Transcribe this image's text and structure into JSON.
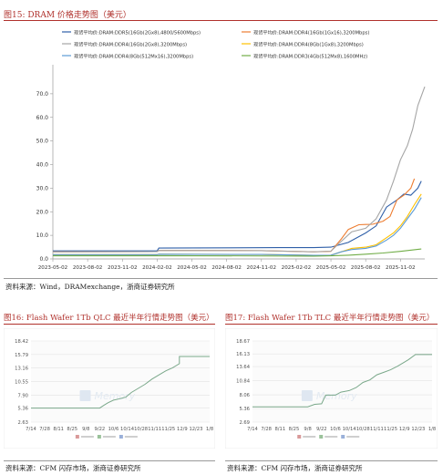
{
  "figures": [
    {
      "title": "图15:  DRAM 价格走势图（美元）",
      "source": "资料来源：Wind，DRAMexchange，浙商证券研究所"
    },
    {
      "title": "图16:  Flash Wafer 1Tb QLC 最近半年行情走势图（美元）",
      "source": "资料来源：CFM 闪存市场，浙商证券研究所"
    },
    {
      "title": "图17:  Flash Wafer 1Tb TLC 最近半年行情走势图（美元）",
      "source": "资料来源：CFM 闪存市场，浙商证券研究所"
    }
  ],
  "colors": {
    "accent": "#b0312c"
  },
  "chart_data": [
    {
      "type": "line",
      "x": [
        "2023-05-02",
        "2023-08-02",
        "2023-11-02",
        "2024-02-02",
        "2024-05-02",
        "2024-08-02",
        "2024-11-02",
        "2025-02-02",
        "2025-05-02",
        "2025-08-02",
        "2025-11-02"
      ],
      "xlim": [
        0,
        10.7
      ],
      "ylim": [
        0,
        80
      ],
      "yticks": [
        "0.0",
        "10.0",
        "20.0",
        "30.0",
        "40.0",
        "50.0",
        "60.0",
        "70.0"
      ],
      "legend_position": "top",
      "series": [
        {
          "name": "现货平均价:DRAM:DDR5(16Gb(2Gx8),4800/5600Mbps)",
          "color": "#2f5fa8",
          "points": [
            [
              0,
              3.4
            ],
            [
              3.0,
              3.4
            ],
            [
              3.05,
              4.6
            ],
            [
              6.5,
              4.8
            ],
            [
              7.5,
              4.8
            ],
            [
              8.0,
              5.0
            ],
            [
              8.5,
              7.0
            ],
            [
              9.0,
              11.0
            ],
            [
              9.3,
              14.0
            ],
            [
              9.6,
              22.0
            ],
            [
              9.9,
              25.0
            ],
            [
              10.1,
              27.5
            ],
            [
              10.3,
              27.0
            ],
            [
              10.5,
              30.0
            ],
            [
              10.6,
              33.0
            ]
          ]
        },
        {
          "name": "现货平均价:DRAM:DDR4(16Gb(1Gx16),3200Mbps)",
          "color": "#ed7d31",
          "points": [
            [
              0,
              3.0
            ],
            [
              3.0,
              3.1
            ],
            [
              3.05,
              3.6
            ],
            [
              6.0,
              3.5
            ],
            [
              7.5,
              3.0
            ],
            [
              8.0,
              3.2
            ],
            [
              8.3,
              8.5
            ],
            [
              8.5,
              12.5
            ],
            [
              8.8,
              14.5
            ],
            [
              9.0,
              14.6
            ],
            [
              9.2,
              14.7
            ],
            [
              9.5,
              16.0
            ],
            [
              9.7,
              18.0
            ],
            [
              9.9,
              25.0
            ],
            [
              10.1,
              27.0
            ],
            [
              10.3,
              30.0
            ],
            [
              10.4,
              34.0
            ]
          ]
        },
        {
          "name": "现货平均价:DRAM:DDR4(16Gb(2Gx8),3200Mbps)",
          "color": "#a5a5a5",
          "points": [
            [
              0,
              3.0
            ],
            [
              3.0,
              3.1
            ],
            [
              3.05,
              3.6
            ],
            [
              6.0,
              3.5
            ],
            [
              7.5,
              3.0
            ],
            [
              8.0,
              3.3
            ],
            [
              8.3,
              7.5
            ],
            [
              8.6,
              11.5
            ],
            [
              9.0,
              13.0
            ],
            [
              9.3,
              17.0
            ],
            [
              9.6,
              25.0
            ],
            [
              9.8,
              33.0
            ],
            [
              10.0,
              42.0
            ],
            [
              10.2,
              48.0
            ],
            [
              10.35,
              55.0
            ],
            [
              10.5,
              65.0
            ],
            [
              10.7,
              73.0
            ]
          ]
        },
        {
          "name": "现货平均价:DRAM:DDR4(8Gb(1Gx8),3200Mbps)",
          "color": "#ffc000",
          "points": [
            [
              0,
              1.8
            ],
            [
              3.0,
              1.8
            ],
            [
              3.05,
              2.0
            ],
            [
              6.0,
              1.9
            ],
            [
              7.5,
              1.5
            ],
            [
              8.0,
              1.6
            ],
            [
              8.3,
              3.0
            ],
            [
              8.6,
              4.5
            ],
            [
              9.0,
              5.0
            ],
            [
              9.3,
              6.0
            ],
            [
              9.6,
              9.0
            ],
            [
              9.8,
              11.0
            ],
            [
              10.0,
              14.0
            ],
            [
              10.2,
              18.0
            ],
            [
              10.4,
              23.0
            ],
            [
              10.6,
              27.5
            ]
          ]
        },
        {
          "name": "现货平均价:DRAM:DDR4(8Gb(512Mx16),3200Mbps)",
          "color": "#5b9bd5",
          "points": [
            [
              0,
              1.8
            ],
            [
              3.0,
              1.8
            ],
            [
              3.05,
              2.0
            ],
            [
              6.0,
              1.9
            ],
            [
              7.5,
              1.5
            ],
            [
              8.0,
              1.6
            ],
            [
              8.3,
              3.0
            ],
            [
              8.6,
              4.0
            ],
            [
              9.0,
              4.5
            ],
            [
              9.3,
              5.5
            ],
            [
              9.6,
              8.0
            ],
            [
              9.8,
              10.0
            ],
            [
              10.0,
              13.0
            ],
            [
              10.2,
              17.0
            ],
            [
              10.4,
              21.0
            ],
            [
              10.6,
              26.0
            ]
          ]
        },
        {
          "name": "现货平均价:DRAM:DDR3(4Gb(512Mx8),1600MHz)",
          "color": "#70ad47",
          "points": [
            [
              0,
              1.3
            ],
            [
              3.0,
              1.3
            ],
            [
              3.05,
              1.4
            ],
            [
              7.5,
              1.2
            ],
            [
              8.0,
              1.3
            ],
            [
              8.5,
              1.6
            ],
            [
              9.0,
              2.0
            ],
            [
              9.5,
              2.5
            ],
            [
              10.0,
              3.2
            ],
            [
              10.6,
              4.2
            ]
          ]
        }
      ]
    },
    {
      "type": "line",
      "categories": [
        "7/14",
        "7/28",
        "8/11",
        "8/25",
        "9/8",
        "9/22",
        "10/6",
        "10/14",
        "10/28",
        "11/11",
        "11/25",
        "12/9",
        "12/23",
        "1/8"
      ],
      "yticks": [
        "2.63",
        "5.36",
        "7.90",
        "10.55",
        "13.16",
        "15.79",
        "18.42"
      ],
      "ylim": [
        2.63,
        18.42
      ],
      "series": [
        {
          "name": "价格走势",
          "color": "#7aa88a",
          "points": [
            [
              0,
              5.36
            ],
            [
              5,
              5.36
            ],
            [
              5.3,
              5.9
            ],
            [
              5.6,
              6.4
            ],
            [
              6.0,
              6.9
            ],
            [
              6.5,
              7.2
            ],
            [
              6.9,
              7.5
            ],
            [
              7.3,
              8.4
            ],
            [
              7.8,
              9.2
            ],
            [
              8.3,
              10.0
            ],
            [
              8.8,
              11.0
            ],
            [
              9.3,
              11.8
            ],
            [
              9.8,
              12.6
            ],
            [
              10.3,
              13.2
            ],
            [
              10.8,
              14.0
            ],
            [
              10.8,
              15.4
            ],
            [
              13,
              15.4
            ]
          ]
        }
      ]
    },
    {
      "type": "line",
      "categories": [
        "7/14",
        "7/28",
        "8/11",
        "8/25",
        "9/8",
        "9/22",
        "10/6",
        "10/14",
        "10/28",
        "11/11",
        "11/25",
        "12/9",
        "12/23",
        "1/8"
      ],
      "yticks": [
        "2.69",
        "5.36",
        "8.06",
        "10.84",
        "13.64",
        "16.13",
        "18.67"
      ],
      "ylim": [
        2.69,
        18.67
      ],
      "series": [
        {
          "name": "价格走势",
          "color": "#7aa88a",
          "points": [
            [
              0,
              5.7
            ],
            [
              4,
              5.7
            ],
            [
              4.5,
              6.2
            ],
            [
              5,
              6.3
            ],
            [
              5.3,
              8.0
            ],
            [
              6,
              8.0
            ],
            [
              6.4,
              8.6
            ],
            [
              7,
              8.9
            ],
            [
              7.5,
              9.5
            ],
            [
              8,
              10.5
            ],
            [
              8.5,
              11.0
            ],
            [
              9,
              12.0
            ],
            [
              9.5,
              12.5
            ],
            [
              10,
              13.0
            ],
            [
              10.5,
              13.7
            ],
            [
              11,
              14.5
            ],
            [
              11.3,
              15.0
            ],
            [
              11.8,
              16.0
            ],
            [
              13,
              16.0
            ]
          ]
        }
      ]
    }
  ]
}
